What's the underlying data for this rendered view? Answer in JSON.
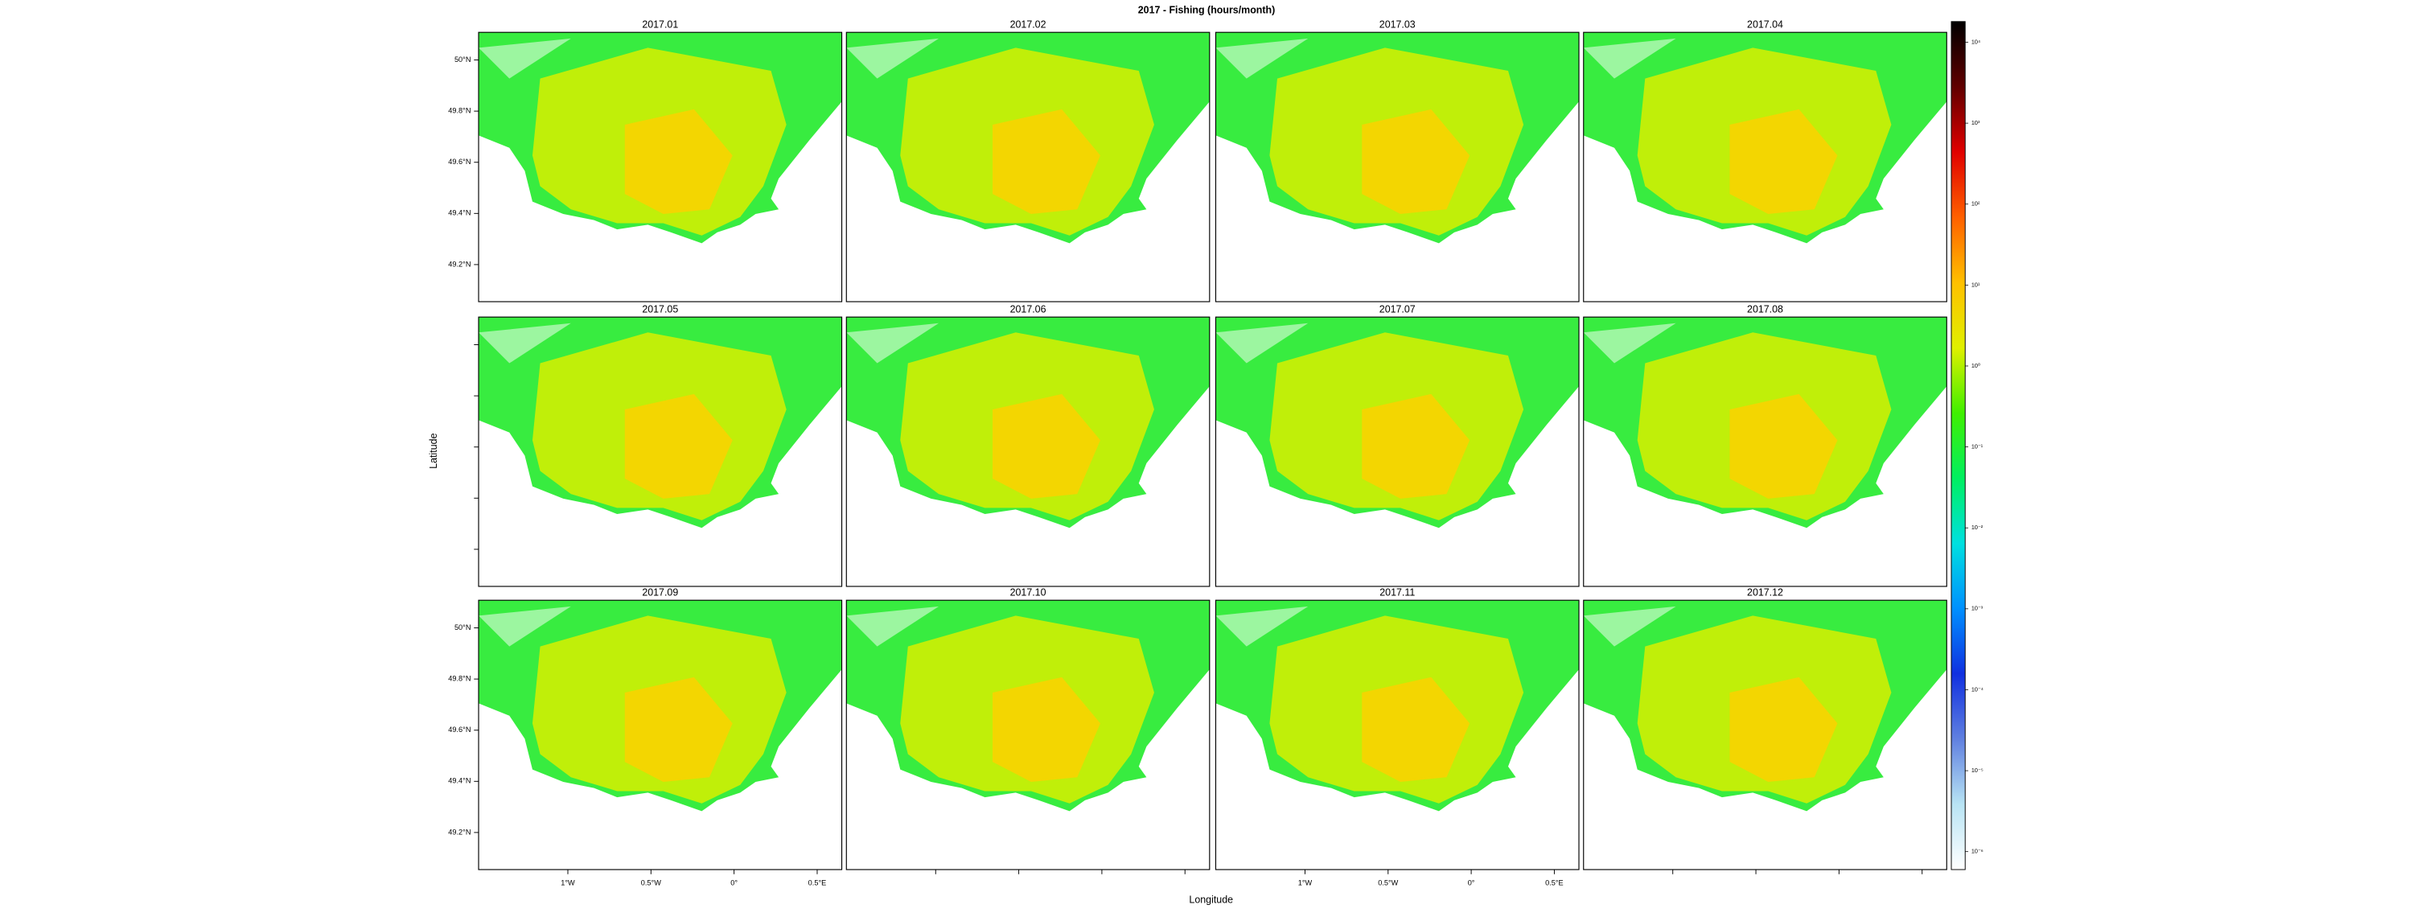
{
  "chart_data": {
    "type": "heatmap",
    "title": "2017 - Fishing (hours/month)",
    "panels": [
      "2017.01",
      "2017.02",
      "2017.03",
      "2017.04",
      "2017.05",
      "2017.06",
      "2017.07",
      "2017.08",
      "2017.09",
      "2017.10",
      "2017.11",
      "2017.12"
    ],
    "xlabel": "Longitude",
    "ylabel": "Latitude",
    "xlim": [
      -1.537,
      0.648
    ],
    "ylim": [
      49.055,
      50.108
    ],
    "xticks": [
      {
        "value": -1,
        "label": "1°W"
      },
      {
        "value": -0.5,
        "label": "0.5°W"
      },
      {
        "value": 0,
        "label": "0°"
      },
      {
        "value": 0.5,
        "label": "0.5°E"
      }
    ],
    "yticks": [
      {
        "value": 50,
        "label": "50°N"
      },
      {
        "value": 49.8,
        "label": "49.8°N"
      },
      {
        "value": 49.6,
        "label": "49.6°N"
      },
      {
        "value": 49.4,
        "label": "49.4°N"
      },
      {
        "value": 49.2,
        "label": "49.2°N"
      }
    ],
    "colorbar": {
      "log": true,
      "lim": [
        6e-07,
        18000
      ],
      "ticks": [
        {
          "value": 10000,
          "label": "10⁴"
        },
        {
          "value": 1000,
          "label": "10³"
        },
        {
          "value": 100,
          "label": "10²"
        },
        {
          "value": 10,
          "label": "10¹"
        },
        {
          "value": 1,
          "label": "10⁰"
        },
        {
          "value": 0.1,
          "label": "10⁻¹"
        },
        {
          "value": 0.01,
          "label": "10⁻²"
        },
        {
          "value": 0.001,
          "label": "10⁻³"
        },
        {
          "value": 0.0001,
          "label": "10⁻⁴"
        },
        {
          "value": 1e-05,
          "label": "10⁻⁵"
        },
        {
          "value": 1e-06,
          "label": "10⁻⁶"
        }
      ],
      "colors": [
        "#ffffff",
        "#b8e4f4",
        "#6080e0",
        "#1030e0",
        "#0090ff",
        "#00e0e0",
        "#00f060",
        "#40f000",
        "#e0f000",
        "#ffc000",
        "#ff6000",
        "#e00000",
        "#600000",
        "#000000"
      ]
    }
  }
}
